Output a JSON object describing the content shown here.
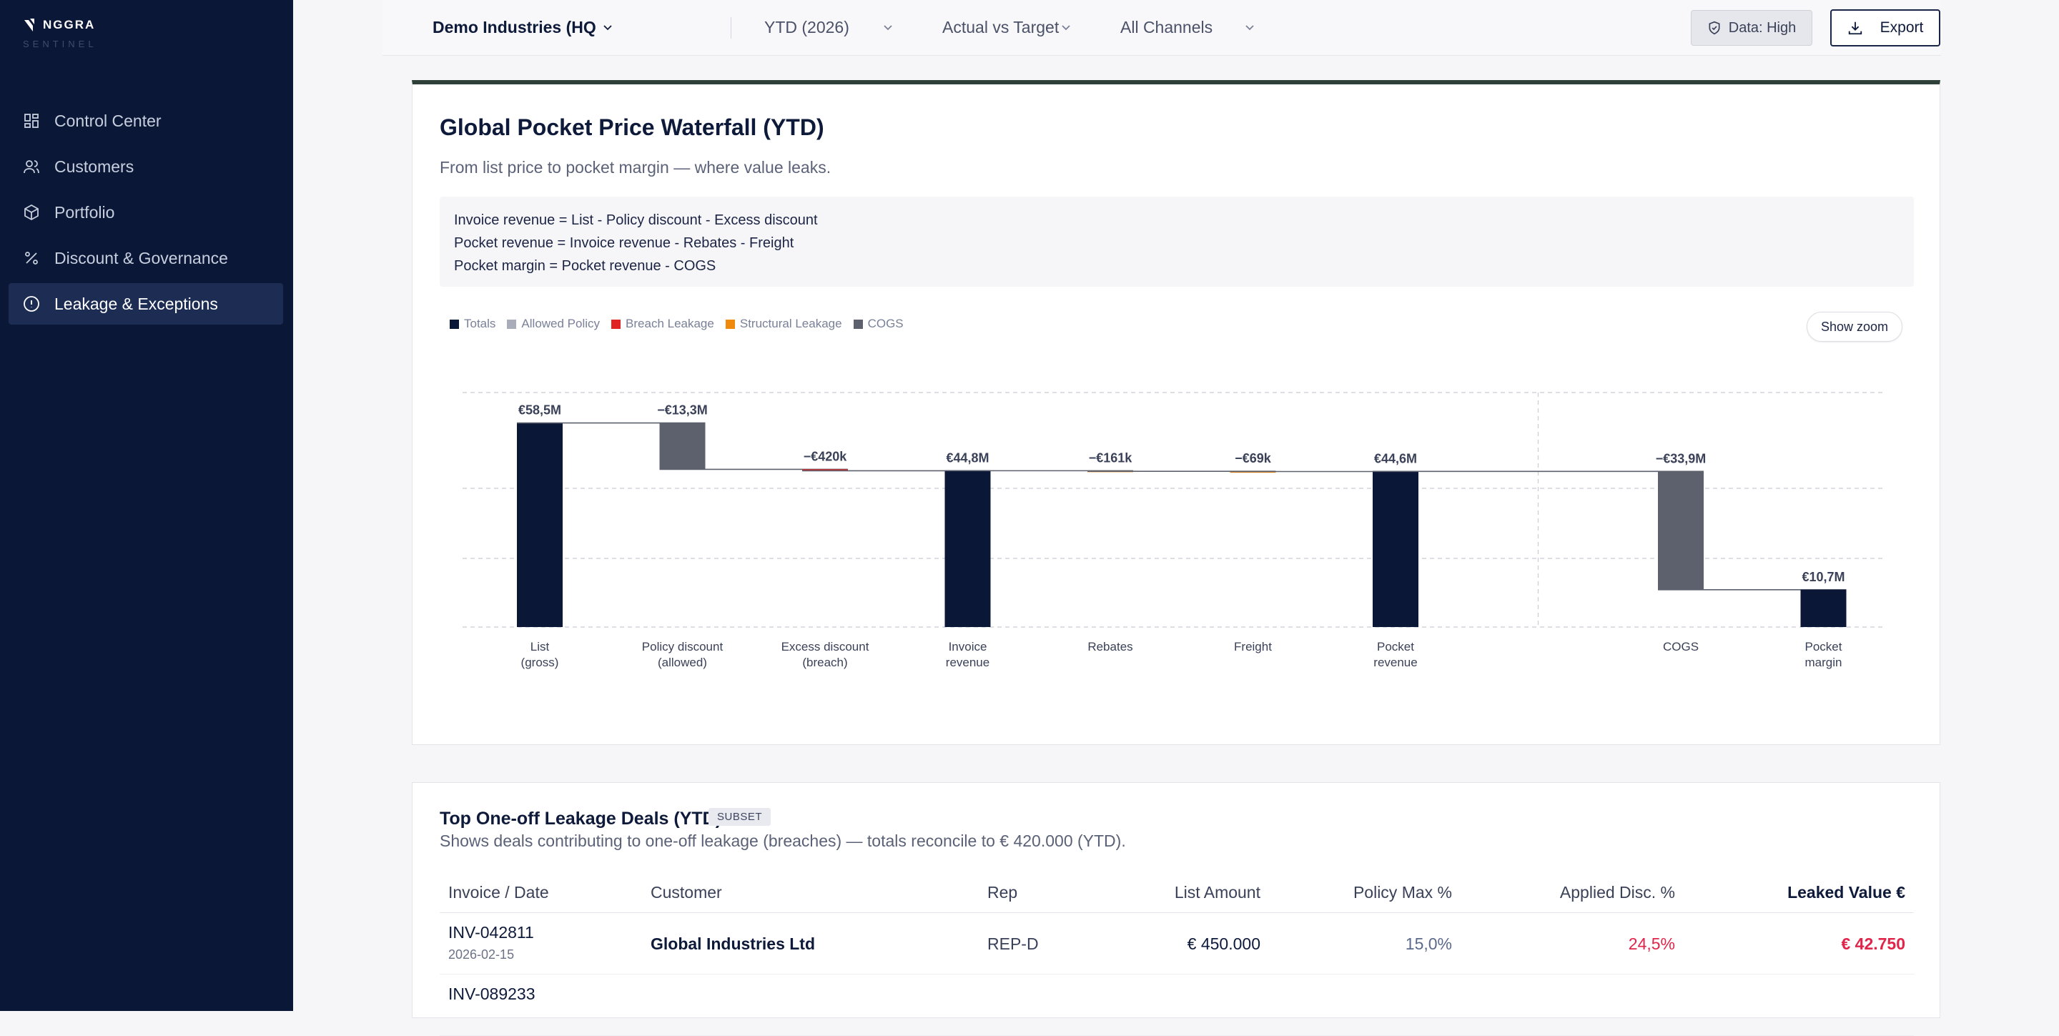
{
  "brand": {
    "name": "NGGRA",
    "sub": "SENTINEL"
  },
  "sidebar": {
    "items": [
      {
        "label": "Control Center",
        "icon": "grid-icon"
      },
      {
        "label": "Customers",
        "icon": "users-icon"
      },
      {
        "label": "Portfolio",
        "icon": "box-icon"
      },
      {
        "label": "Discount & Governance",
        "icon": "percent-icon"
      },
      {
        "label": "Leakage & Exceptions",
        "icon": "alert-circle-icon",
        "active": true
      }
    ]
  },
  "topbar": {
    "org": "Demo Industries (HQ",
    "period": "YTD (2026)",
    "comparison": "Actual vs Target",
    "channel": "All Channels",
    "data_quality": "Data: High",
    "export": "Export"
  },
  "waterfall_card": {
    "title": "Global Pocket Price Waterfall (YTD)",
    "subtitle": "From list price to pocket margin — where value leaks.",
    "formulas": [
      "Invoice revenue = List - Policy discount - Excess discount",
      "Pocket revenue = Invoice revenue - Rebates - Freight",
      "Pocket margin = Pocket revenue - COGS"
    ],
    "legend": [
      {
        "label": "Totals",
        "color": "#0b1737"
      },
      {
        "label": "Allowed Policy",
        "color": "#a9adb9"
      },
      {
        "label": "Breach Leakage",
        "color": "#e02424"
      },
      {
        "label": "Structural Leakage",
        "color": "#f08a0c"
      },
      {
        "label": "COGS",
        "color": "#5d616d"
      }
    ],
    "zoom_button": "Show zoom"
  },
  "chart_data": {
    "type": "waterfall",
    "unit": "€M",
    "ylim": [
      0,
      65
    ],
    "grid": true,
    "steps": [
      {
        "label": [
          "List",
          "(gross)"
        ],
        "value": 58.5,
        "kind": "total",
        "display": "€58,5M",
        "color": "#0b1737"
      },
      {
        "label": [
          "Policy discount",
          "(allowed)"
        ],
        "value": -13.3,
        "kind": "delta",
        "display": "−€13,3M",
        "color": "#5d616d"
      },
      {
        "label": [
          "Excess discount",
          "(breach)"
        ],
        "value": -0.42,
        "kind": "delta",
        "display": "−€420k",
        "color": "#e02424"
      },
      {
        "label": [
          "Invoice",
          "revenue"
        ],
        "value": 44.8,
        "kind": "total",
        "display": "€44,8M",
        "color": "#0b1737"
      },
      {
        "label": [
          "Rebates"
        ],
        "value": -0.161,
        "kind": "delta",
        "display": "−€161k",
        "color": "#f08a0c"
      },
      {
        "label": [
          "Freight"
        ],
        "value": -0.069,
        "kind": "delta",
        "display": "−€69k",
        "color": "#f08a0c"
      },
      {
        "label": [
          "Pocket",
          "revenue"
        ],
        "value": 44.6,
        "kind": "total",
        "display": "€44,6M",
        "color": "#0b1737"
      },
      {
        "label": [
          "COGS"
        ],
        "value": -33.9,
        "kind": "delta",
        "display": "−€33,9M",
        "color": "#5d616d"
      },
      {
        "label": [
          "Pocket",
          "margin"
        ],
        "value": 10.7,
        "kind": "total",
        "display": "€10,7M",
        "color": "#0b1737"
      }
    ]
  },
  "deals_card": {
    "title": "Top One-off Leakage Deals (YTD)",
    "badge": "SUBSET",
    "desc": "Shows deals contributing to one-off leakage (breaches) — totals reconcile to € 420.000 (YTD).",
    "columns": [
      "Invoice / Date",
      "Customer",
      "Rep",
      "List Amount",
      "Policy Max %",
      "Applied Disc. %",
      "Leaked Value €"
    ],
    "rows": [
      {
        "invoice": "INV-042811",
        "date": "2026-02-15",
        "customer": "Global Industries Ltd",
        "rep": "REP-D",
        "list": "€ 450.000",
        "policy": "15,0%",
        "applied": "24,5%",
        "leaked": "€ 42.750"
      },
      {
        "invoice": "INV-089233",
        "date": "",
        "customer": "",
        "rep": "",
        "list": "",
        "policy": "",
        "applied": "",
        "leaked": ""
      }
    ]
  }
}
